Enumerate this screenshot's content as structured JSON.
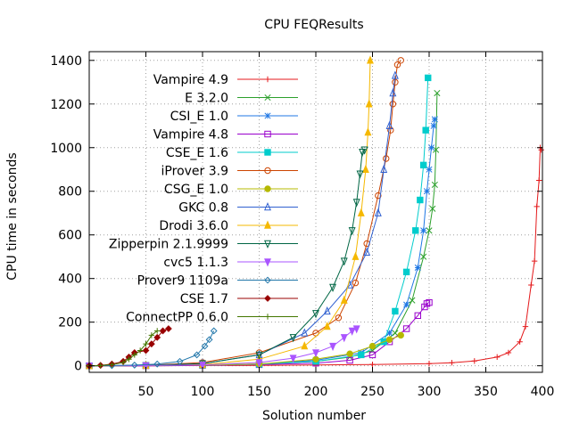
{
  "chart_data": {
    "type": "line",
    "title": "CPU FEQResults",
    "xlabel": "Solution number",
    "ylabel": "CPU time in seconds",
    "xlim": [
      0,
      400
    ],
    "ylim": [
      -30,
      1440
    ],
    "xticks": [
      50,
      100,
      150,
      200,
      250,
      300,
      350,
      400
    ],
    "yticks": [
      0,
      200,
      400,
      600,
      800,
      1000,
      1200,
      1400
    ],
    "grid": true,
    "legend_position": "top-left",
    "series": [
      {
        "name": "Vampire 4.9",
        "color": "#e41a1c",
        "marker": "plus",
        "x": [
          0,
          50,
          100,
          150,
          200,
          250,
          300,
          320,
          340,
          360,
          370,
          380,
          385,
          390,
          393,
          395,
          397,
          398,
          399
        ],
        "y": [
          0,
          0,
          1,
          2,
          4,
          6,
          10,
          14,
          22,
          40,
          60,
          110,
          180,
          370,
          480,
          730,
          850,
          1000,
          990
        ]
      },
      {
        "name": "E 3.2.0",
        "color": "#2ca02c",
        "marker": "x",
        "x": [
          0,
          50,
          100,
          150,
          200,
          230,
          250,
          270,
          285,
          295,
          300,
          303,
          305,
          306,
          307
        ],
        "y": [
          0,
          1,
          3,
          8,
          20,
          40,
          70,
          150,
          300,
          500,
          620,
          720,
          830,
          990,
          1250
        ]
      },
      {
        "name": "CSI_E 1.0",
        "color": "#1f77e4",
        "marker": "star",
        "x": [
          0,
          50,
          100,
          150,
          200,
          240,
          265,
          280,
          290,
          295,
          298,
          300,
          302,
          304,
          305
        ],
        "y": [
          0,
          1,
          3,
          8,
          25,
          60,
          150,
          280,
          450,
          620,
          800,
          900,
          1000,
          1100,
          1130
        ]
      },
      {
        "name": "Vampire 4.8",
        "color": "#9900cc",
        "marker": "square",
        "x": [
          0,
          50,
          100,
          150,
          200,
          230,
          250,
          265,
          280,
          290,
          296,
          298,
          300
        ],
        "y": [
          0,
          0,
          2,
          5,
          12,
          25,
          50,
          110,
          170,
          230,
          270,
          285,
          290
        ]
      },
      {
        "name": "CSE_E 1.6",
        "color": "#00cccc",
        "marker": "filled-square",
        "x": [
          0,
          50,
          100,
          150,
          200,
          240,
          260,
          270,
          280,
          288,
          292,
          295,
          297,
          299
        ],
        "y": [
          0,
          1,
          3,
          7,
          20,
          50,
          110,
          250,
          430,
          620,
          760,
          920,
          1080,
          1320
        ]
      },
      {
        "name": "iProver 3.9",
        "color": "#cc4400",
        "marker": "circle",
        "x": [
          0,
          50,
          100,
          150,
          200,
          220,
          235,
          245,
          255,
          262,
          266,
          268,
          270,
          272,
          275
        ],
        "y": [
          0,
          2,
          15,
          60,
          150,
          220,
          380,
          560,
          780,
          950,
          1080,
          1200,
          1300,
          1380,
          1400
        ]
      },
      {
        "name": "CSG_E 1.0",
        "color": "#b5b800",
        "marker": "filled-circle",
        "x": [
          0,
          50,
          100,
          150,
          200,
          230,
          250,
          265,
          275
        ],
        "y": [
          0,
          1,
          3,
          8,
          30,
          55,
          90,
          120,
          140
        ]
      },
      {
        "name": "GKC 0.8",
        "color": "#3060d0",
        "marker": "triangle",
        "x": [
          0,
          50,
          100,
          150,
          190,
          210,
          230,
          245,
          255,
          260,
          265,
          268,
          270
        ],
        "y": [
          0,
          2,
          10,
          50,
          150,
          250,
          370,
          520,
          700,
          900,
          1100,
          1250,
          1330
        ]
      },
      {
        "name": "Drodi 3.6.0",
        "color": "#f5b800",
        "marker": "filled-triangle",
        "x": [
          0,
          50,
          100,
          150,
          190,
          210,
          225,
          235,
          240,
          244,
          246,
          247,
          248
        ],
        "y": [
          0,
          1,
          5,
          30,
          90,
          180,
          300,
          500,
          700,
          900,
          1070,
          1200,
          1400
        ]
      },
      {
        "name": "Zipperpin 2.1.9999",
        "color": "#006644",
        "marker": "triangle-down",
        "x": [
          0,
          50,
          100,
          150,
          180,
          200,
          215,
          225,
          232,
          236,
          239,
          241,
          243
        ],
        "y": [
          0,
          2,
          10,
          50,
          130,
          240,
          360,
          480,
          620,
          750,
          880,
          980,
          990
        ]
      },
      {
        "name": "cvc5 1.1.3",
        "color": "#aa55ff",
        "marker": "filled-triangle-down",
        "x": [
          0,
          50,
          100,
          150,
          180,
          200,
          215,
          225,
          232,
          236
        ],
        "y": [
          0,
          1,
          4,
          15,
          35,
          60,
          90,
          130,
          160,
          170
        ]
      },
      {
        "name": "Prover9 1109a",
        "color": "#2277aa",
        "marker": "diamond",
        "x": [
          0,
          20,
          40,
          60,
          80,
          95,
          102,
          106,
          110
        ],
        "y": [
          0,
          1,
          3,
          8,
          20,
          50,
          90,
          120,
          160
        ]
      },
      {
        "name": "CSE 1.7",
        "color": "#990000",
        "marker": "filled-diamond",
        "x": [
          0,
          10,
          20,
          30,
          35,
          40,
          50,
          55,
          60,
          65,
          70
        ],
        "y": [
          0,
          2,
          8,
          20,
          40,
          60,
          70,
          100,
          130,
          160,
          170
        ]
      },
      {
        "name": "ConnectPP 0.6.0",
        "color": "#447700",
        "marker": "plus",
        "x": [
          0,
          10,
          20,
          30,
          35,
          40,
          45,
          50,
          55,
          60
        ],
        "y": [
          0,
          1,
          5,
          15,
          30,
          50,
          70,
          100,
          140,
          160
        ]
      }
    ]
  }
}
